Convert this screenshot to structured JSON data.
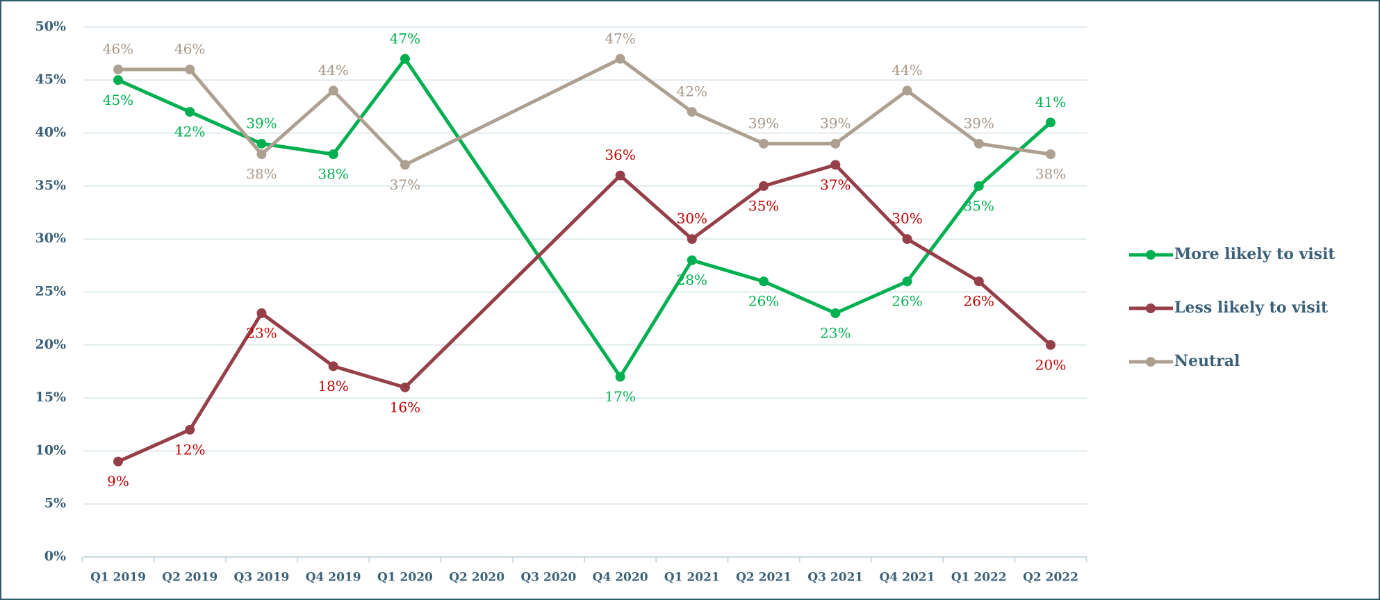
{
  "chart_data": {
    "type": "line",
    "categories": [
      "Q1 2019",
      "Q2 2019",
      "Q3 2019",
      "Q4 2019",
      "Q1 2020",
      "Q2 2020",
      "Q3 2020",
      "Q4 2020",
      "Q1 2021",
      "Q2 2021",
      "Q3 2021",
      "Q4 2021",
      "Q1 2022",
      "Q2 2022"
    ],
    "series": [
      {
        "name": "More likely to visit",
        "color": "#00b050",
        "label_color": "#00b050",
        "values": [
          45,
          42,
          39,
          38,
          47,
          null,
          null,
          17,
          28,
          26,
          23,
          26,
          35,
          41
        ],
        "value_labels": [
          "45%",
          "42%",
          "39%",
          "38%",
          "47%",
          null,
          null,
          "17%",
          "28%",
          "26%",
          "23%",
          "26%",
          "35%",
          "41%"
        ]
      },
      {
        "name": "Less likely to visit",
        "color": "#953f49",
        "label_color": "#c00000",
        "values": [
          9,
          12,
          23,
          18,
          16,
          null,
          null,
          36,
          30,
          35,
          37,
          30,
          26,
          20
        ],
        "value_labels": [
          "9%",
          "12%",
          "23%",
          "18%",
          "16%",
          null,
          null,
          "36%",
          "30%",
          "35%",
          "37%",
          "30%",
          "26%",
          "20%"
        ]
      },
      {
        "name": "Neutral",
        "color": "#ada090",
        "label_color": "#a8988a",
        "values": [
          46,
          46,
          38,
          44,
          37,
          null,
          null,
          47,
          42,
          39,
          39,
          44,
          39,
          38
        ],
        "value_labels": [
          "46%",
          "46%",
          "38%",
          "44%",
          "37%",
          null,
          null,
          "47%",
          "42%",
          "39%",
          "39%",
          "44%",
          "39%",
          "38%"
        ]
      }
    ],
    "ylim": [
      0,
      50
    ],
    "yticks": [
      {
        "value": 0,
        "label": "0%"
      },
      {
        "value": 5,
        "label": "5%"
      },
      {
        "value": 10,
        "label": "10%"
      },
      {
        "value": 15,
        "label": "15%"
      },
      {
        "value": 20,
        "label": "20%"
      },
      {
        "value": 25,
        "label": "25%"
      },
      {
        "value": 30,
        "label": "30%"
      },
      {
        "value": 35,
        "label": "35%"
      },
      {
        "value": 40,
        "label": "40%"
      },
      {
        "value": 45,
        "label": "45%"
      },
      {
        "value": 50,
        "label": "50%"
      }
    ],
    "grid": true,
    "legend": "right"
  }
}
